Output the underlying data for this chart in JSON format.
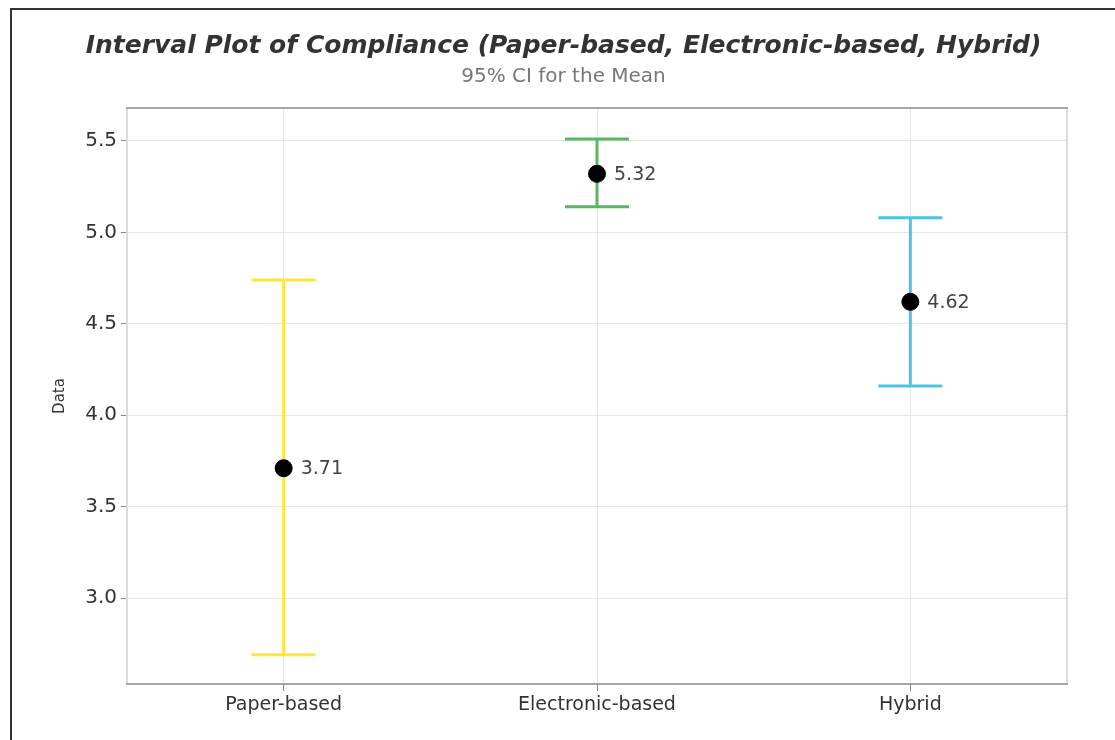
{
  "chart_data": {
    "type": "scatter",
    "title": "Interval Plot of Compliance (Paper-based, Electronic-based, Hybrid)",
    "subtitle": "95% CI for the Mean",
    "ylabel": "Data",
    "categories": [
      "Paper-based",
      "Electronic-based",
      "Hybrid"
    ],
    "values": [
      3.71,
      5.32,
      4.62
    ],
    "errors": [
      [
        2.69,
        4.74
      ],
      [
        5.14,
        5.51
      ],
      [
        4.16,
        5.08
      ]
    ],
    "color": "#000000",
    "ylim": [
      2.53,
      5.68
    ],
    "yticks": [
      {
        "value": 3,
        "label": "3.0"
      },
      3.5,
      {
        "value": 4,
        "label": "4.0"
      },
      4.5,
      {
        "value": 5,
        "label": "5.0"
      },
      5.5
    ],
    "grid": true,
    "marker": "circle",
    "data_labels": true
  }
}
